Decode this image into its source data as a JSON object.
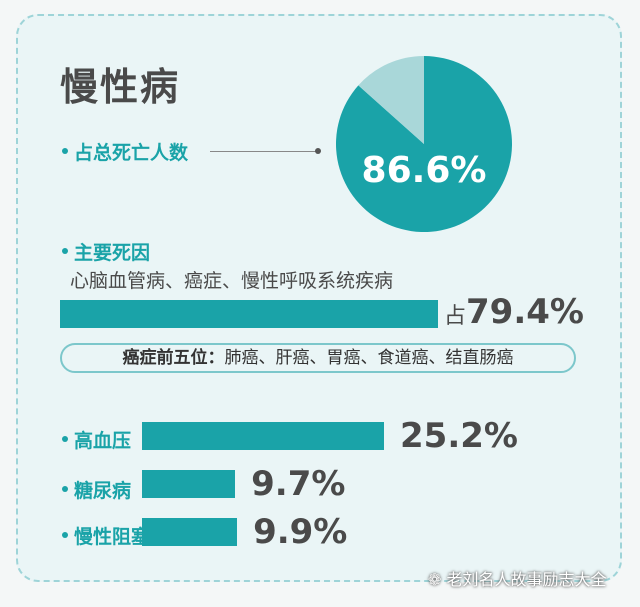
{
  "title": "慢性病",
  "death_share": {
    "label": "占总死亡人数",
    "value_text": "86.6%"
  },
  "main_causes": {
    "label": "主要死因",
    "diseases": "心脑血管病、癌症、慢性呼吸系统疾病",
    "prefix": "占",
    "value_text": "79.4%"
  },
  "cancer_top5": {
    "head": "癌症前五位：",
    "items": "肺癌、肝癌、胃癌、食道癌、结直肠癌"
  },
  "bars": [
    {
      "label": "高血压",
      "value_text": "25.2%"
    },
    {
      "label": "糖尿病",
      "value_text": "9.7%"
    },
    {
      "label": "慢性阻塞性肺病",
      "value_text": "9.9%"
    }
  ],
  "watermark": {
    "icon": "wechat-icon",
    "text": "老刘名人故事励志大全"
  },
  "colors": {
    "accent": "#1aa3a8",
    "pie_rest": "#a9d7d9",
    "text": "#4a4a4a"
  },
  "chart_data": [
    {
      "type": "pie",
      "labels": [
        "占总死亡人数",
        ""
      ],
      "values": [
        86.6,
        13.4
      ],
      "title": ""
    },
    {
      "type": "bar",
      "orientation": "horizontal",
      "categories": [
        "心脑血管病、癌症、慢性呼吸系统疾病",
        "高血压",
        "糖尿病",
        "慢性阻塞性肺病"
      ],
      "values": [
        79.4,
        25.2,
        9.7,
        9.9
      ],
      "xlim": [
        0,
        100
      ],
      "title": "",
      "xlabel": "",
      "ylabel": ""
    }
  ]
}
